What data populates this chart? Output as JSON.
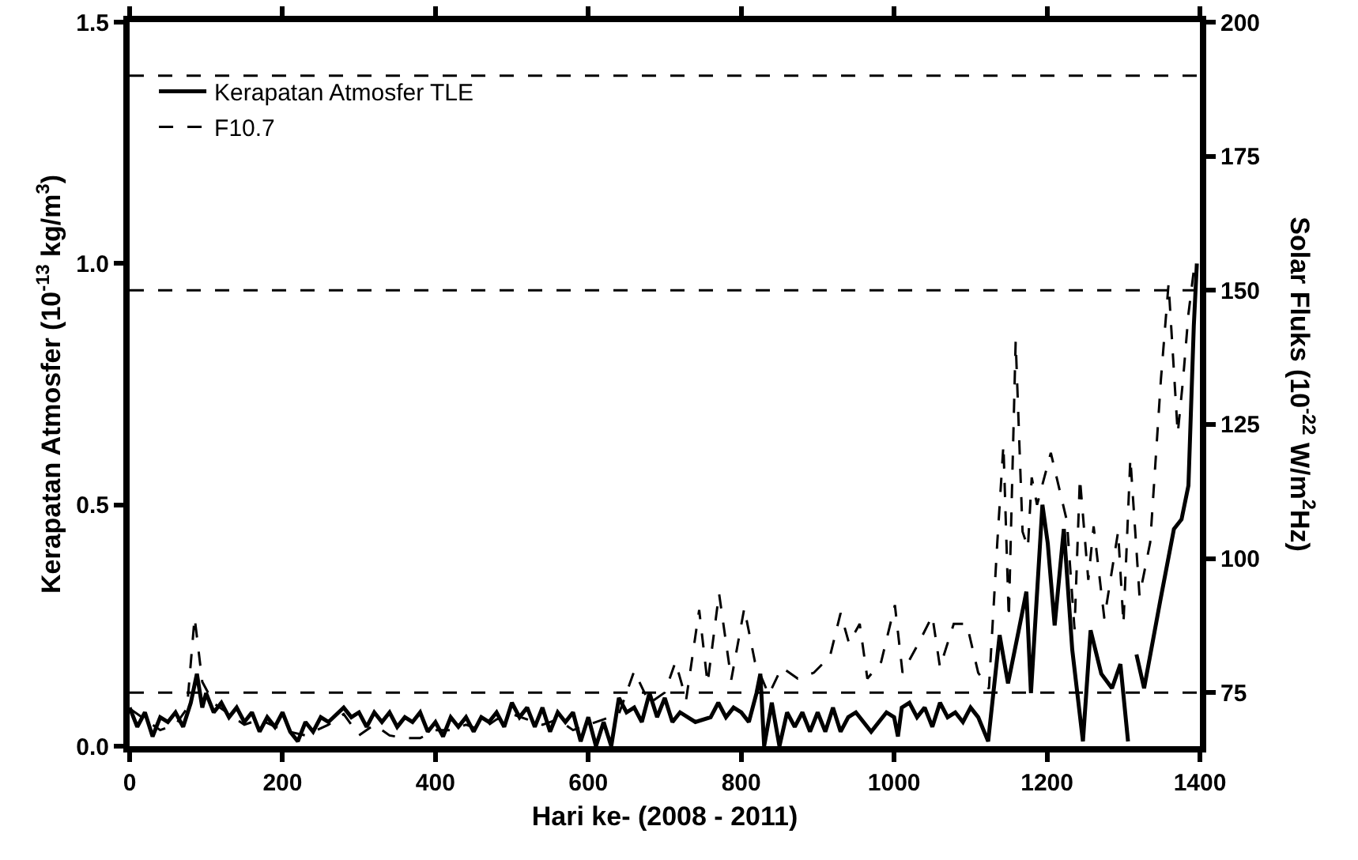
{
  "chart_data": {
    "type": "line",
    "xlabel": "Hari ke- (2008 - 2011)",
    "ylabel": "Kerapatan Atmosfer (10$^{-13}$ kg/m$^{3}$)",
    "y2label": "Solar Fluks (10$^{-22}$ W/m$^{2}$Hz)",
    "xlim": [
      0,
      1400
    ],
    "xticks": [
      0,
      200,
      400,
      600,
      800,
      1000,
      1200,
      1400
    ],
    "ylim": [
      0,
      1.5
    ],
    "yticks": [
      {
        "value": 0,
        "label": "0.0"
      },
      {
        "value": 0.5,
        "label": "0.5"
      },
      {
        "value": 1,
        "label": "1.0"
      },
      {
        "value": 1.5,
        "label": "1.5"
      }
    ],
    "y2lim": [
      65,
      200
    ],
    "y2ticks": [
      75,
      100,
      125,
      150,
      175,
      200
    ],
    "grid": false,
    "legend": "top left",
    "marker": "none",
    "ref_lines": [
      {
        "axis": "y2",
        "value": 75,
        "line_style": "dashed"
      },
      {
        "axis": "y2",
        "value": 150,
        "line_style": "dashed"
      },
      {
        "axis": "y2",
        "value": 190,
        "line_style": "dashed"
      }
    ],
    "series": [
      {
        "name": "Kerapatan Atmosfer TLE",
        "color": "#000000",
        "line_style": "solid",
        "x": [
          0,
          10,
          20,
          30,
          40,
          50,
          60,
          70,
          80,
          88,
          95,
          100,
          110,
          120,
          130,
          140,
          150,
          160,
          170,
          180,
          190,
          200,
          210,
          220,
          230,
          240,
          250,
          260,
          280,
          290,
          300,
          310,
          320,
          330,
          340,
          350,
          360,
          370,
          380,
          390,
          400,
          410,
          420,
          430,
          440,
          450,
          460,
          470,
          480,
          490,
          500,
          510,
          520,
          530,
          540,
          550,
          560,
          570,
          580,
          590,
          600,
          610,
          620,
          630,
          640,
          650,
          660,
          670,
          680,
          690,
          700,
          710,
          720,
          740,
          760,
          770,
          780,
          790,
          800,
          810,
          820,
          825,
          830,
          840,
          850,
          860,
          870,
          880,
          890,
          900,
          910,
          920,
          930,
          940,
          950,
          960,
          970,
          980,
          990,
          1000,
          1005,
          1010,
          1020,
          1030,
          1040,
          1050,
          1060,
          1070,
          1080,
          1090,
          1100,
          1110,
          1123,
          1138,
          1149,
          1163,
          1173,
          1179,
          1194,
          1201,
          1210,
          1222,
          1233,
          1247,
          1257,
          1271,
          1285,
          1296,
          1306,
          1311,
          1317,
          1327,
          1348,
          1366,
          1376,
          1385,
          1392,
          1396
        ],
        "values": [
          0.08,
          0.04,
          0.07,
          0.02,
          0.06,
          0.05,
          0.07,
          0.04,
          0.09,
          0.15,
          0.08,
          0.11,
          0.07,
          0.09,
          0.06,
          0.08,
          0.05,
          0.07,
          0.03,
          0.06,
          0.04,
          0.07,
          0.03,
          0.01,
          0.05,
          0.03,
          0.06,
          0.05,
          0.08,
          0.06,
          0.07,
          0.04,
          0.07,
          0.05,
          0.07,
          0.04,
          0.06,
          0.05,
          0.07,
          0.03,
          0.05,
          0.02,
          0.06,
          0.04,
          0.06,
          0.03,
          0.06,
          0.05,
          0.07,
          0.04,
          0.09,
          0.06,
          0.08,
          0.04,
          0.08,
          0.03,
          0.07,
          0.05,
          0.07,
          0.01,
          0.06,
          0.0,
          0.05,
          0.0,
          0.1,
          0.07,
          0.08,
          0.05,
          0.11,
          0.06,
          0.1,
          0.05,
          0.07,
          0.05,
          0.06,
          0.09,
          0.06,
          0.08,
          0.07,
          0.05,
          0.11,
          0.15,
          0.0,
          0.09,
          0.0,
          0.07,
          0.04,
          0.07,
          0.03,
          0.07,
          0.03,
          0.08,
          0.03,
          0.06,
          0.07,
          0.05,
          0.03,
          0.05,
          0.07,
          0.06,
          0.02,
          0.08,
          0.09,
          0.06,
          0.08,
          0.04,
          0.09,
          0.06,
          0.07,
          0.05,
          0.08,
          0.06,
          0.01,
          0.23,
          0.13,
          0.24,
          0.32,
          0.11,
          0.5,
          0.42,
          0.25,
          0.45,
          0.2,
          0.01,
          0.24,
          0.15,
          0.12,
          0.17,
          0.01,
          null,
          0.19,
          0.12,
          0.3,
          0.45,
          0.47,
          0.54,
          0.87,
          1.0
        ]
      },
      {
        "name": "F10.7",
        "color": "#000000",
        "line_style": "dashed",
        "axis": "y2",
        "x": [
          0,
          20,
          40,
          60,
          75,
          85,
          95,
          110,
          130,
          150,
          170,
          200,
          230,
          260,
          280,
          300,
          320,
          340,
          360,
          380,
          400,
          420,
          440,
          460,
          480,
          500,
          520,
          540,
          560,
          580,
          600,
          620,
          640,
          660,
          680,
          700,
          714,
          728,
          745,
          756,
          771,
          787,
          804,
          818,
          836,
          853,
          874,
          895,
          916,
          930,
          941,
          955,
          965,
          983,
          1001,
          1011,
          1032,
          1050,
          1060,
          1078,
          1095,
          1110,
          1124,
          1135,
          1143,
          1150,
          1159,
          1168,
          1175,
          1180,
          1187,
          1205,
          1226,
          1236,
          1243,
          1254,
          1261,
          1275,
          1293,
          1300,
          1309,
          1321,
          1335,
          1349,
          1359,
          1371,
          1378,
          1385,
          1392
        ],
        "values": [
          72,
          70,
          68,
          69,
          72,
          89,
          77,
          73,
          71,
          69,
          70,
          68,
          67,
          69,
          71,
          67,
          69,
          67,
          66.5,
          66.5,
          68,
          68,
          69,
          68,
          70,
          71,
          70,
          69,
          70,
          68,
          69,
          70,
          71,
          79,
          73,
          75,
          80.7,
          73.7,
          90.4,
          76.7,
          93.5,
          77.4,
          90.7,
          80.7,
          74.6,
          79.7,
          77.6,
          78.7,
          81.7,
          89.8,
          84.2,
          87.8,
          77.6,
          80.7,
          91.3,
          78.7,
          84.2,
          89.3,
          79.7,
          87.8,
          87.8,
          78.7,
          75.7,
          103,
          121.2,
          88.8,
          140.5,
          105,
          102,
          115.1,
          110,
          119.7,
          107,
          86.8,
          115,
          96,
          106,
          88.8,
          105,
          87.8,
          118.7,
          93,
          103,
          133.4,
          151.2,
          123.3,
          133.4,
          145.6,
          153.7
        ]
      }
    ]
  }
}
